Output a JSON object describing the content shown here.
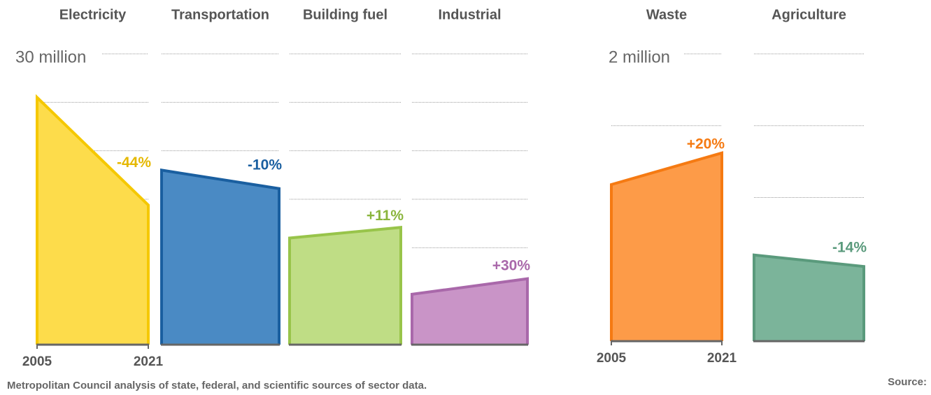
{
  "chart_data": [
    {
      "type": "area",
      "categories": [
        "2005",
        "2021"
      ],
      "ylim": [
        0,
        30
      ],
      "yticks": [
        {
          "value": 30,
          "label": "30 million"
        }
      ],
      "ygrid": [
        5,
        10,
        15,
        20,
        25
      ],
      "series": [
        {
          "name": "Electricity",
          "color": "#f5c800",
          "fill": "#fddc4b",
          "label_color": "#e5b800",
          "values": [
            25.5,
            14.4
          ],
          "change": "-44%"
        },
        {
          "name": "Transportation",
          "color": "#1a5fa0",
          "fill": "#4a8ac4",
          "label_color": "#1a5fa0",
          "values": [
            18.0,
            16.1
          ],
          "change": "-10%"
        },
        {
          "name": "Building fuel",
          "color": "#98c44a",
          "fill": "#bfdd85",
          "label_color": "#8ab53c",
          "values": [
            11.0,
            12.1
          ],
          "change": "+11%"
        },
        {
          "name": "Industrial",
          "color": "#a968aa",
          "fill": "#c994c7",
          "label_color": "#a968aa",
          "values": [
            5.2,
            6.8
          ],
          "change": "+30%"
        }
      ]
    },
    {
      "type": "area",
      "categories": [
        "2005",
        "2021"
      ],
      "ylim": [
        0,
        2
      ],
      "yticks": [
        {
          "value": 2,
          "label": "2 million"
        }
      ],
      "ygrid": [
        0.5,
        1,
        1.5
      ],
      "series": [
        {
          "name": "Waste",
          "color": "#f57a12",
          "fill": "#fd9b48",
          "label_color": "#f57a12",
          "values": [
            1.09,
            1.31
          ],
          "change": "+20%"
        },
        {
          "name": "Agriculture",
          "color": "#5a9a7c",
          "fill": "#7bb49a",
          "label_color": "#5a9a7c",
          "values": [
            0.6,
            0.52
          ],
          "change": "-14%"
        }
      ]
    }
  ],
  "footer": {
    "source_label": "Source:",
    "source_text": "Metropolitan Council analysis of state, federal, and scientific sources of sector data."
  }
}
